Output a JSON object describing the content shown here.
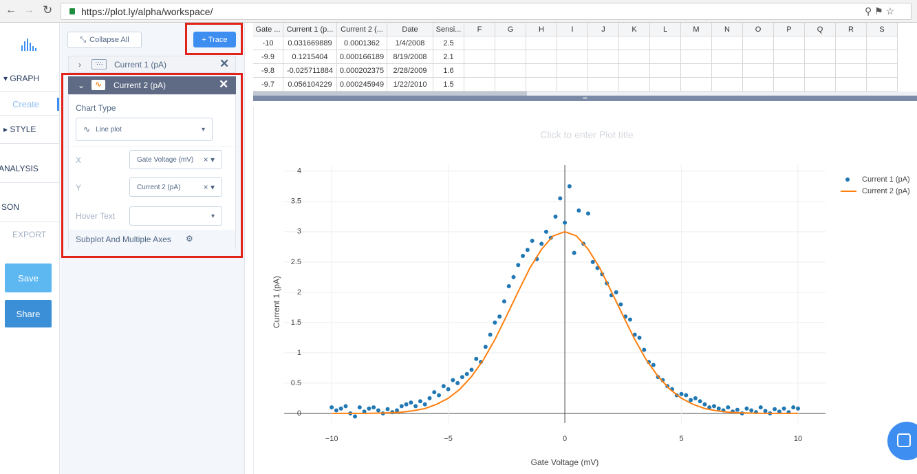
{
  "browser": {
    "url": "https://plot.ly/alpha/workspace/"
  },
  "sidebar": {
    "graph": "GRAPH",
    "create": "Create",
    "style": "STYLE",
    "analysis": "ANALYSIS",
    "json": "SON",
    "export": "EXPORT",
    "save": "Save",
    "share": "Share"
  },
  "panel": {
    "collapse_all": "Collapse All",
    "add_trace": "+ Trace",
    "traces": [
      "Current 1 (pA)",
      "Current 2 (pA)"
    ],
    "chart_type_label": "Chart Type",
    "chart_type": "Line plot",
    "x_label": "X",
    "x_value": "Gate Voltage (mV)",
    "y_label": "Y",
    "y_value": "Current 2 (pA)",
    "hover_label": "Hover Text",
    "subplot": "Subplot And Multiple Axes"
  },
  "sheet": {
    "columns": [
      "Gate ...",
      "Current 1 (p...",
      "Current 2 (...",
      "Date",
      "Sensi...",
      "F",
      "G",
      "H",
      "I",
      "J",
      "K",
      "L",
      "M",
      "N",
      "O",
      "P",
      "Q",
      "R",
      "S"
    ],
    "rows": [
      [
        -10,
        0.031669889,
        0.0001362,
        "1/4/2008",
        2.5
      ],
      [
        -9.9,
        0.1215404,
        0.000166189,
        "8/19/2008",
        2.1
      ],
      [
        -9.8,
        -0.025711884,
        0.000202375,
        "2/28/2009",
        1.6
      ],
      [
        -9.7,
        0.056104229,
        0.000245949,
        "1/22/2010",
        1.5
      ]
    ]
  },
  "chart_data": {
    "type": "scatter",
    "title": "Click to enter Plot title",
    "x_label": "Gate Voltage (mV)",
    "y_label": "Current 1 (pA)",
    "series": [
      {
        "name": "Current 1 (pA)",
        "color": "#1f77b4",
        "mode": "markers",
        "x": [
          -10,
          -9.8,
          -9.6,
          -9.4,
          -9.2,
          -9,
          -8.8,
          -8.6,
          -8.4,
          -8.2,
          -8,
          -7.8,
          -7.6,
          -7.4,
          -7.2,
          -7,
          -6.8,
          -6.6,
          -6.4,
          -6.2,
          -6,
          -5.8,
          -5.6,
          -5.4,
          -5.2,
          -5,
          -4.8,
          -4.6,
          -4.4,
          -4.2,
          -4,
          -3.8,
          -3.6,
          -3.4,
          -3.2,
          -3,
          -2.8,
          -2.6,
          -2.4,
          -2.2,
          -2,
          -1.8,
          -1.6,
          -1.4,
          -1.2,
          -1,
          -0.8,
          -0.6,
          -0.4,
          -0.2,
          0,
          0.2,
          0.4,
          0.6,
          0.8,
          1,
          1.2,
          1.4,
          1.6,
          1.8,
          2,
          2.2,
          2.4,
          2.6,
          2.8,
          3,
          3.2,
          3.4,
          3.6,
          3.8,
          4,
          4.2,
          4.4,
          4.6,
          4.8,
          5,
          5.2,
          5.4,
          5.6,
          5.8,
          6,
          6.2,
          6.4,
          6.6,
          6.8,
          7,
          7.2,
          7.4,
          7.6,
          7.8,
          8,
          8.2,
          8.4,
          8.6,
          8.8,
          9,
          9.2,
          9.4,
          9.6,
          9.8,
          10
        ],
        "values": [
          0.1,
          0.05,
          0.08,
          0.12,
          0.0,
          -0.05,
          0.1,
          0.03,
          0.08,
          0.1,
          0.05,
          0.0,
          0.07,
          0.02,
          0.05,
          0.12,
          0.15,
          0.18,
          0.12,
          0.2,
          0.15,
          0.25,
          0.35,
          0.3,
          0.45,
          0.4,
          0.55,
          0.5,
          0.6,
          0.65,
          0.72,
          0.9,
          0.85,
          1.1,
          1.3,
          1.5,
          1.6,
          1.85,
          2.1,
          2.25,
          2.45,
          2.6,
          2.7,
          2.85,
          2.55,
          2.8,
          3.0,
          2.9,
          3.25,
          3.55,
          3.15,
          3.75,
          2.65,
          3.35,
          2.8,
          3.3,
          2.5,
          2.4,
          2.3,
          2.15,
          1.95,
          2.0,
          1.8,
          1.6,
          1.55,
          1.3,
          1.25,
          1.05,
          0.85,
          0.8,
          0.6,
          0.55,
          0.45,
          0.4,
          0.3,
          0.32,
          0.3,
          0.22,
          0.25,
          0.2,
          0.15,
          0.1,
          0.12,
          0.08,
          0.05,
          0.1,
          0.03,
          0.06,
          0.0,
          0.08,
          0.05,
          0.02,
          0.1,
          0.04,
          0.0,
          0.07,
          0.03,
          0.08,
          0.02,
          0.1,
          0.08
        ]
      },
      {
        "name": "Current 2 (pA)",
        "color": "#ff7f0e",
        "mode": "lines",
        "x": [
          -10,
          -9.5,
          -9,
          -8.5,
          -8,
          -7.5,
          -7,
          -6.5,
          -6,
          -5.5,
          -5,
          -4.5,
          -4,
          -3.5,
          -3,
          -2.5,
          -2,
          -1.5,
          -1,
          -0.5,
          0,
          0.5,
          1,
          1.5,
          2,
          2.5,
          3,
          3.5,
          4,
          4.5,
          5,
          5.5,
          6,
          6.5,
          7,
          7.5,
          8,
          8.5,
          9,
          9.5,
          10
        ],
        "values": [
          0,
          0,
          0,
          0,
          0.005,
          0.01,
          0.02,
          0.044,
          0.08,
          0.15,
          0.25,
          0.4,
          0.61,
          0.88,
          1.22,
          1.61,
          2.01,
          2.4,
          2.71,
          2.93,
          3,
          2.93,
          2.71,
          2.4,
          2.01,
          1.61,
          1.22,
          0.88,
          0.61,
          0.4,
          0.25,
          0.15,
          0.08,
          0.044,
          0.02,
          0.01,
          0.005,
          0,
          0,
          0,
          0
        ]
      }
    ],
    "xlim": [
      -12.04,
      11.18
    ],
    "ylim": [
      -0.16,
      4.1
    ],
    "xticks": [
      {
        "value": -10,
        "label": "−10"
      },
      {
        "value": -5,
        "label": "−5"
      },
      0,
      5,
      10
    ],
    "yticks": [
      0,
      0.5,
      1,
      1.5,
      2,
      2.5,
      3,
      3.5,
      4
    ],
    "grid": true,
    "legend": "top-right"
  }
}
